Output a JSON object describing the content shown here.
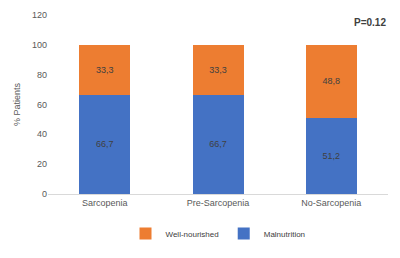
{
  "chart_data": {
    "type": "bar",
    "stacked": true,
    "data_labels": true,
    "grid": false,
    "legend": "bottom",
    "y_label": "% Patients",
    "annotations": [
      "P=0.12"
    ],
    "categories": [
      "Sarcopenia",
      "Pre-Sarcopenia",
      "No-Sarcopenia"
    ],
    "series": [
      {
        "name": "Malnutrition",
        "color": "#4472c4",
        "values": [
          66.7,
          66.7,
          51.2
        ],
        "value_labels": [
          "66,7",
          "66,7",
          "51,2"
        ]
      },
      {
        "name": "Well-nourished",
        "color": "#ed7d31",
        "values": [
          33.3,
          33.3,
          48.8
        ],
        "value_labels": [
          "33,3",
          "33,3",
          "48,8"
        ]
      }
    ],
    "ylim": [
      0,
      120
    ],
    "yticks": [
      0,
      20,
      40,
      60,
      80,
      100,
      120
    ]
  }
}
